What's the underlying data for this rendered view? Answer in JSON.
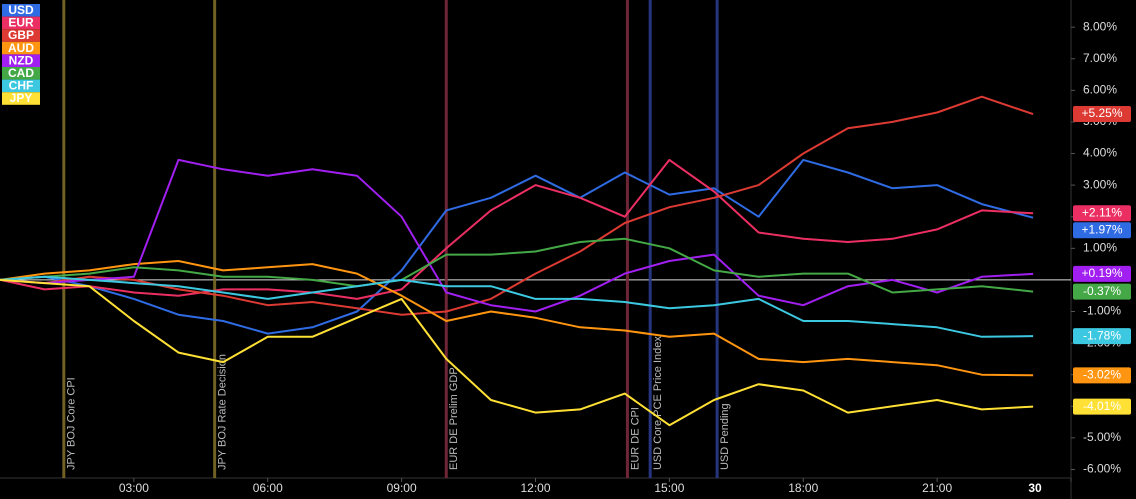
{
  "chart_data": {
    "type": "line",
    "x": [
      0,
      1,
      2,
      3,
      4,
      5,
      6,
      7,
      8,
      9,
      10,
      11,
      12,
      13,
      14,
      15,
      16,
      17,
      18,
      19,
      20,
      21,
      22,
      23.15
    ],
    "xlim": [
      0,
      24
    ],
    "xticks": [
      {
        "value": 3,
        "label": "03:00"
      },
      {
        "value": 6,
        "label": "06:00"
      },
      {
        "value": 9,
        "label": "09:00"
      },
      {
        "value": 12,
        "label": "12:00"
      },
      {
        "value": 15,
        "label": "15:00"
      },
      {
        "value": 18,
        "label": "18:00"
      },
      {
        "value": 21,
        "label": "21:00"
      },
      {
        "value": 24,
        "label": "30"
      }
    ],
    "ylim": [
      -6.27,
      8.86
    ],
    "yticks": [
      {
        "value": 8,
        "label": "8.00%"
      },
      {
        "value": 7,
        "label": "7.00%"
      },
      {
        "value": 6,
        "label": "6.00%"
      },
      {
        "value": 5,
        "label": "5.00%"
      },
      {
        "value": 4,
        "label": "4.00%"
      },
      {
        "value": 3,
        "label": "3.00%"
      },
      {
        "value": 2,
        "label": "2.00%"
      },
      {
        "value": 1,
        "label": "1.00%"
      },
      {
        "value": -1,
        "label": "-1.00%"
      },
      {
        "value": -2,
        "label": "-2.00%"
      },
      {
        "value": -3,
        "label": "-3.00%"
      },
      {
        "value": -4,
        "label": "-4.00%"
      },
      {
        "value": -5,
        "label": "-5.00%"
      },
      {
        "value": -6,
        "label": "-6.00%"
      }
    ],
    "series": [
      {
        "name": "USD",
        "color": "#2f6be3",
        "values": [
          0,
          0.1,
          -0.2,
          -0.6,
          -1.1,
          -1.3,
          -1.7,
          -1.5,
          -1.0,
          0.3,
          2.2,
          2.6,
          3.3,
          2.6,
          3.4,
          2.7,
          2.9,
          2.0,
          3.8,
          3.4,
          2.9,
          3.0,
          2.4,
          1.97
        ],
        "value_labels": [
          "+1.97%"
        ]
      },
      {
        "name": "EUR",
        "color": "#ec2f62",
        "values": [
          0,
          -0.3,
          -0.2,
          -0.4,
          -0.5,
          -0.3,
          -0.3,
          -0.4,
          -0.6,
          -0.3,
          1.0,
          2.2,
          3.0,
          2.6,
          2.0,
          3.8,
          2.8,
          1.5,
          1.3,
          1.2,
          1.3,
          1.6,
          2.2,
          2.11
        ],
        "value_labels": [
          "+2.11%"
        ]
      },
      {
        "name": "GBP",
        "color": "#dc3a33",
        "values": [
          0,
          -0.1,
          0.1,
          0,
          -0.3,
          -0.5,
          -0.8,
          -0.7,
          -0.9,
          -1.1,
          -1.0,
          -0.6,
          0.2,
          0.9,
          1.8,
          2.3,
          2.6,
          3.0,
          4.0,
          4.8,
          5.0,
          5.3,
          5.8,
          5.25
        ],
        "value_labels": [
          "+5.25%"
        ]
      },
      {
        "name": "AUD",
        "color": "#ff9510",
        "values": [
          0,
          0.2,
          0.3,
          0.5,
          0.6,
          0.3,
          0.4,
          0.5,
          0.2,
          -0.5,
          -1.3,
          -1.0,
          -1.2,
          -1.5,
          -1.6,
          -1.8,
          -1.7,
          -2.5,
          -2.6,
          -2.5,
          -2.6,
          -2.7,
          -3.0,
          -3.02
        ],
        "value_labels": [
          "-3.02%"
        ]
      },
      {
        "name": "NZD",
        "color": "#a11ff0",
        "values": [
          0,
          -0.1,
          0,
          0.1,
          3.8,
          3.5,
          3.3,
          3.5,
          3.3,
          2.0,
          -0.4,
          -0.8,
          -1.0,
          -0.5,
          0.2,
          0.6,
          0.8,
          -0.5,
          -0.8,
          -0.2,
          0,
          -0.4,
          0.1,
          0.19
        ],
        "value_labels": [
          "+0.19%"
        ]
      },
      {
        "name": "CAD",
        "color": "#43a845",
        "values": [
          0,
          0.1,
          0.2,
          0.4,
          0.3,
          0.1,
          0.1,
          0,
          -0.2,
          0,
          0.8,
          0.8,
          0.9,
          1.2,
          1.3,
          1.0,
          0.3,
          0.1,
          0.2,
          0.2,
          -0.4,
          -0.3,
          -0.2,
          -0.37
        ],
        "value_labels": [
          "-0.37%"
        ]
      },
      {
        "name": "CHF",
        "color": "#3cc8e0",
        "values": [
          0,
          0.1,
          0,
          -0.1,
          -0.2,
          -0.4,
          -0.6,
          -0.4,
          -0.2,
          0,
          -0.2,
          -0.2,
          -0.6,
          -0.6,
          -0.7,
          -0.9,
          -0.8,
          -0.6,
          -1.3,
          -1.3,
          -1.4,
          -1.5,
          -1.8,
          -1.78
        ],
        "value_labels": [
          "-1.78%"
        ]
      },
      {
        "name": "JPY",
        "color": "#ffe034",
        "values": [
          0,
          -0.1,
          -0.2,
          -1.3,
          -2.3,
          -2.6,
          -1.8,
          -1.8,
          -1.2,
          -0.6,
          -2.5,
          -3.8,
          -4.2,
          -4.1,
          -3.6,
          -4.6,
          -3.8,
          -3.3,
          -3.5,
          -4.2,
          -4.0,
          -3.8,
          -4.1,
          -4.01
        ],
        "value_labels": [
          "-4.01%"
        ]
      }
    ],
    "events": [
      {
        "x": 1.43,
        "label": "JPY BOJ Core CPI",
        "color": "#7d6b28"
      },
      {
        "x": 4.81,
        "label": "JPY BOJ Rate Decision",
        "color": "#7d6b28"
      },
      {
        "x": 10.0,
        "label": "EUR DE Prelim GDP",
        "color": "#7a2a3c"
      },
      {
        "x": 14.06,
        "label": "EUR DE CPI",
        "color": "#7a2a3c"
      },
      {
        "x": 14.57,
        "label": "USD Core PCE Price Index",
        "color": "#2a3c8c"
      },
      {
        "x": 16.07,
        "label": "USD Pending",
        "color": "#2a3c8c"
      }
    ]
  }
}
